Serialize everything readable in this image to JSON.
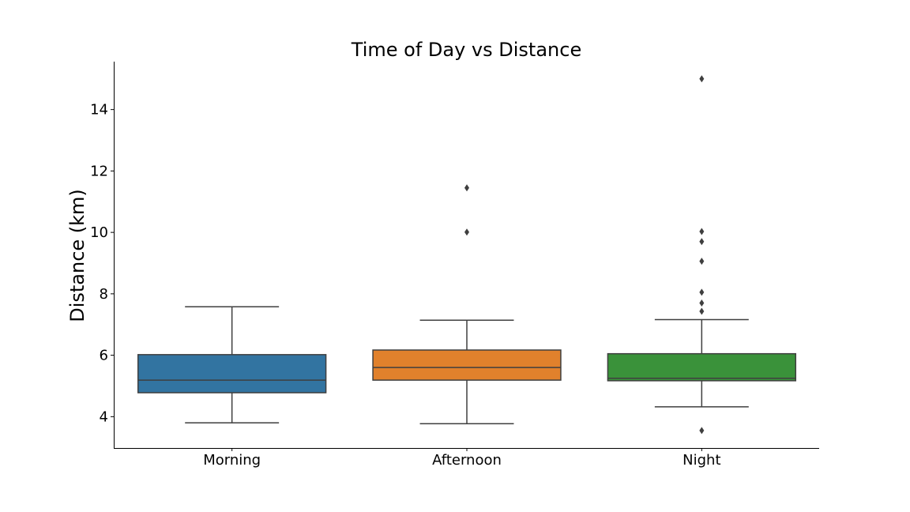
{
  "chart_data": {
    "type": "box",
    "title": "Time of Day vs Distance",
    "xlabel": "",
    "ylabel": "Distance (km)",
    "ylim": [
      2.98,
      15.56
    ],
    "yticks": [
      4,
      6,
      8,
      10,
      12,
      14
    ],
    "grid": false,
    "legend": "none",
    "categories": [
      "Morning",
      "Afternoon",
      "Night"
    ],
    "colors": [
      "#3274a1",
      "#e1812c",
      "#3a923a"
    ],
    "boxes": [
      {
        "category": "Morning",
        "whisker_low": 3.8,
        "q1": 4.78,
        "median": 5.19,
        "q3": 6.02,
        "whisker_high": 7.58,
        "outliers": []
      },
      {
        "category": "Afternoon",
        "whisker_low": 3.77,
        "q1": 5.19,
        "median": 5.6,
        "q3": 6.17,
        "whisker_high": 7.14,
        "outliers": [
          10.01,
          11.45
        ]
      },
      {
        "category": "Night",
        "whisker_low": 4.32,
        "q1": 5.17,
        "median": 5.25,
        "q3": 6.05,
        "whisker_high": 7.16,
        "outliers": [
          3.55,
          7.43,
          7.7,
          8.05,
          9.06,
          9.7,
          10.03,
          15.0
        ]
      }
    ]
  }
}
